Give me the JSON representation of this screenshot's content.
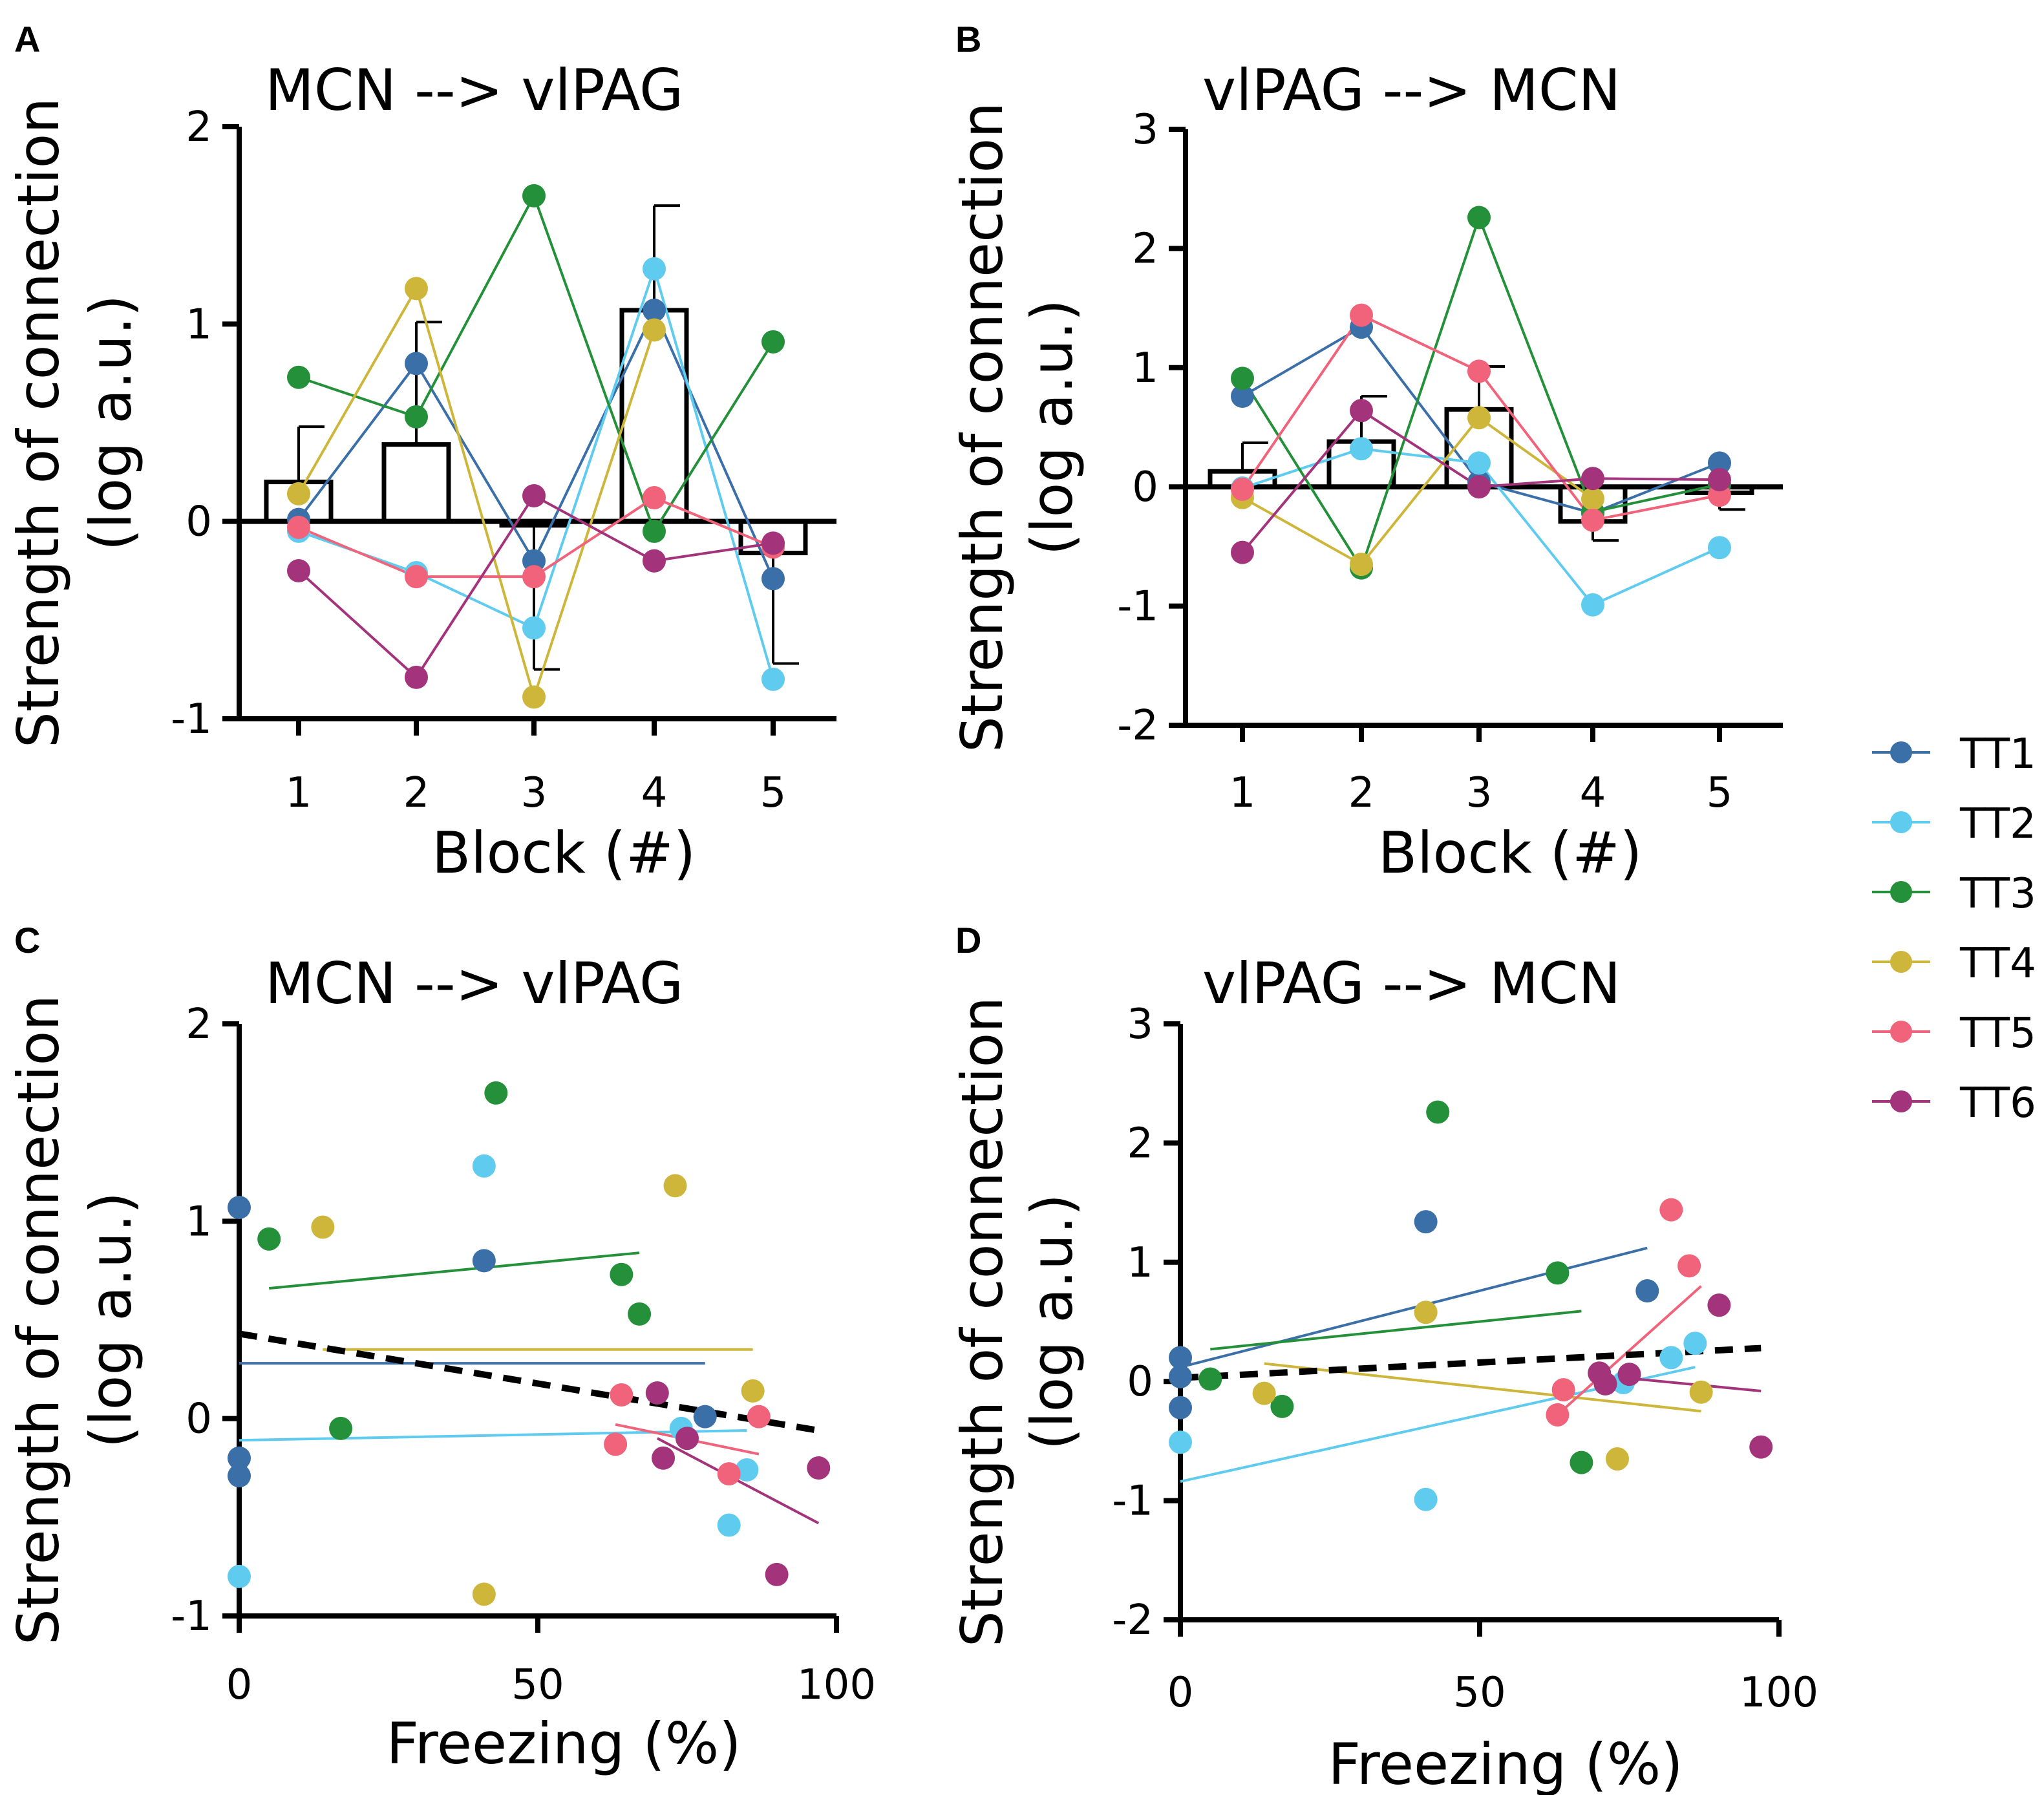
{
  "figure": {
    "legend": [
      {
        "name": "TT1",
        "color": "#3a6fa8"
      },
      {
        "name": "TT2",
        "color": "#5ecbef"
      },
      {
        "name": "TT3",
        "color": "#24913a"
      },
      {
        "name": "TT4",
        "color": "#cdb63a"
      },
      {
        "name": "TT5",
        "color": "#f0637a"
      },
      {
        "name": "TT6",
        "color": "#a3337a"
      }
    ]
  },
  "chart_data": [
    {
      "panel": "A",
      "type": "bar",
      "title": "MCN --> vlPAG",
      "xlabel": "Block (#)",
      "ylabel": "Strength of connection",
      "ylabel2": "(log a.u.)",
      "categories": [
        "1",
        "2",
        "3",
        "4",
        "5"
      ],
      "ylim": [
        -1,
        2
      ],
      "yticks": [
        "-1",
        "0",
        "1",
        "2"
      ],
      "bar_values": [
        0.2,
        0.39,
        -0.02,
        1.07,
        -0.16
      ],
      "error_bars": [
        0.28,
        0.62,
        -0.73,
        0.53,
        -0.56
      ],
      "series": [
        {
          "name": "TT1",
          "values": [
            0.01,
            0.8,
            -0.2,
            1.07,
            -0.29
          ]
        },
        {
          "name": "TT2",
          "values": [
            -0.05,
            -0.26,
            -0.54,
            1.28,
            -0.8
          ]
        },
        {
          "name": "TT3",
          "values": [
            0.73,
            0.53,
            1.65,
            -0.05,
            0.91
          ]
        },
        {
          "name": "TT4",
          "values": [
            0.14,
            1.18,
            -0.89,
            0.97,
            null
          ]
        },
        {
          "name": "TT5",
          "values": [
            -0.03,
            -0.28,
            -0.28,
            0.12,
            -0.13
          ]
        },
        {
          "name": "TT6",
          "values": [
            -0.25,
            -0.79,
            0.13,
            -0.2,
            -0.11
          ]
        }
      ]
    },
    {
      "panel": "B",
      "type": "bar",
      "title": "vlPAG --> MCN",
      "xlabel": "Block (#)",
      "ylabel": "Strength of connection",
      "ylabel2": "(log a.u.)",
      "categories": [
        "1",
        "2",
        "3",
        "4",
        "5"
      ],
      "ylim": [
        -2,
        3
      ],
      "yticks": [
        "-2",
        "-1",
        "0",
        "1",
        "2",
        "3"
      ],
      "bar_values": [
        0.13,
        0.38,
        0.65,
        -0.29,
        -0.05
      ],
      "error_bars": [
        0.24,
        0.38,
        0.36,
        -0.16,
        -0.14
      ],
      "series": [
        {
          "name": "TT1",
          "values": [
            0.76,
            1.34,
            0.04,
            -0.22,
            0.2
          ]
        },
        {
          "name": "TT2",
          "values": [
            -0.01,
            0.32,
            0.2,
            -0.99,
            -0.51
          ]
        },
        {
          "name": "TT3",
          "values": [
            0.91,
            -0.68,
            2.26,
            -0.21,
            0.02
          ]
        },
        {
          "name": "TT4",
          "values": [
            -0.09,
            -0.65,
            0.58,
            -0.1,
            null
          ]
        },
        {
          "name": "TT5",
          "values": [
            -0.02,
            1.44,
            0.97,
            -0.28,
            -0.07
          ]
        },
        {
          "name": "TT6",
          "values": [
            -0.55,
            0.64,
            0.0,
            0.07,
            0.06
          ]
        }
      ]
    },
    {
      "panel": "C",
      "type": "scatter",
      "title": "MCN --> vlPAG",
      "xlabel": "Freezing (%)",
      "ylabel": "Strength of connection",
      "ylabel2": "(log a.u.)",
      "xlim": [
        0,
        100
      ],
      "ylim": [
        -1,
        2
      ],
      "xticks": [
        "0",
        "50",
        "100"
      ],
      "yticks": [
        "-1",
        "0",
        "1",
        "2"
      ],
      "series": [
        {
          "name": "TT1",
          "x": [
            0,
            0,
            0,
            41,
            78
          ],
          "y": [
            1.07,
            -0.2,
            -0.29,
            0.8,
            0.01
          ],
          "fit": {
            "x": [
              0,
              78
            ],
            "y": [
              0.28,
              0.28
            ]
          }
        },
        {
          "name": "TT2",
          "x": [
            0,
            41,
            74,
            82,
            85
          ],
          "y": [
            -0.8,
            1.28,
            -0.05,
            -0.54,
            -0.26
          ],
          "fit": {
            "x": [
              0,
              85
            ],
            "y": [
              -0.11,
              -0.06
            ]
          }
        },
        {
          "name": "TT3",
          "x": [
            5,
            17,
            43,
            64,
            67
          ],
          "y": [
            0.91,
            -0.05,
            1.65,
            0.73,
            0.53
          ],
          "fit": {
            "x": [
              5,
              67
            ],
            "y": [
              0.66,
              0.84
            ]
          }
        },
        {
          "name": "TT4",
          "x": [
            14,
            41,
            73,
            86
          ],
          "y": [
            0.97,
            -0.89,
            1.18,
            0.14
          ],
          "fit": {
            "x": [
              14,
              86
            ],
            "y": [
              0.35,
              0.35
            ]
          }
        },
        {
          "name": "TT5",
          "x": [
            63,
            64,
            82,
            87
          ],
          "y": [
            -0.13,
            0.12,
            -0.28,
            0.01
          ],
          "fit": {
            "x": [
              63,
              87
            ],
            "y": [
              -0.03,
              -0.18
            ]
          }
        },
        {
          "name": "TT6",
          "x": [
            70,
            71,
            75,
            90,
            97
          ],
          "y": [
            0.13,
            -0.2,
            -0.1,
            -0.79,
            -0.25
          ],
          "fit": {
            "x": [
              70,
              97
            ],
            "y": [
              -0.1,
              -0.53
            ]
          }
        }
      ],
      "overall_fit": {
        "x": [
          0,
          97
        ],
        "y": [
          0.43,
          -0.06
        ],
        "style": "dashed"
      }
    },
    {
      "panel": "D",
      "type": "scatter",
      "title": "vlPAG --> MCN",
      "xlabel": "Freezing (%)",
      "ylabel": "Strength of connection",
      "ylabel2": "(log a.u.)",
      "xlim": [
        0,
        100
      ],
      "ylim": [
        -2,
        3
      ],
      "xticks": [
        "0",
        "50",
        "100"
      ],
      "yticks": [
        "-2",
        "-1",
        "0",
        "1",
        "2",
        "3"
      ],
      "series": [
        {
          "name": "TT1",
          "x": [
            0,
            0,
            0,
            41,
            78
          ],
          "y": [
            0.2,
            0.04,
            -0.22,
            1.34,
            0.76
          ],
          "fit": {
            "x": [
              0,
              78
            ],
            "y": [
              0.12,
              1.12
            ]
          }
        },
        {
          "name": "TT2",
          "x": [
            0,
            41,
            74,
            82,
            86
          ],
          "y": [
            -0.51,
            -0.99,
            -0.01,
            0.2,
            0.32
          ],
          "fit": {
            "x": [
              0,
              86
            ],
            "y": [
              -0.84,
              0.12
            ]
          }
        },
        {
          "name": "TT3",
          "x": [
            5,
            17,
            43,
            63,
            67
          ],
          "y": [
            0.02,
            -0.21,
            2.26,
            0.91,
            -0.68
          ],
          "fit": {
            "x": [
              5,
              67
            ],
            "y": [
              0.27,
              0.59
            ]
          }
        },
        {
          "name": "TT4",
          "x": [
            14,
            41,
            73,
            87
          ],
          "y": [
            -0.1,
            0.58,
            -0.65,
            -0.09
          ],
          "fit": {
            "x": [
              14,
              87
            ],
            "y": [
              0.15,
              -0.25
            ]
          }
        },
        {
          "name": "TT5",
          "x": [
            63,
            64,
            82,
            85
          ],
          "y": [
            -0.28,
            -0.07,
            1.44,
            0.97
          ],
          "fit": {
            "x": [
              63,
              87
            ],
            "y": [
              -0.28,
              0.8
            ]
          }
        },
        {
          "name": "TT6",
          "x": [
            70,
            71,
            75,
            90,
            97
          ],
          "y": [
            0.07,
            -0.02,
            0.06,
            0.64,
            -0.55
          ],
          "fit": {
            "x": [
              70,
              97
            ],
            "y": [
              0.05,
              -0.08
            ]
          }
        }
      ],
      "overall_fit": {
        "x": [
          0,
          97
        ],
        "y": [
          0.03,
          0.28
        ],
        "style": "dashed"
      }
    }
  ]
}
